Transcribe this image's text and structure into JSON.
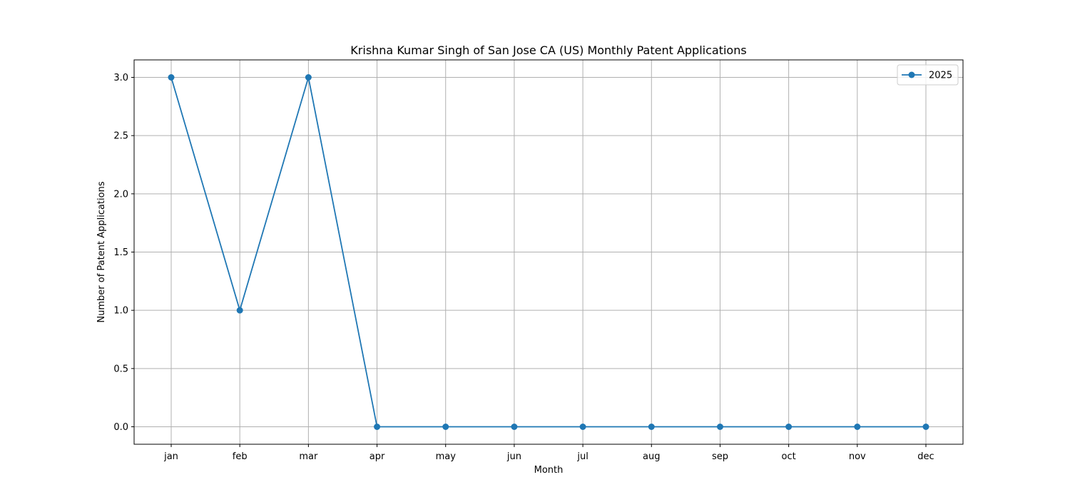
{
  "chart_data": {
    "type": "line",
    "title": "Krishna Kumar Singh of San Jose CA (US) Monthly Patent Applications",
    "xlabel": "Month",
    "ylabel": "Number of Patent Applications",
    "categories": [
      "jan",
      "feb",
      "mar",
      "apr",
      "may",
      "jun",
      "jul",
      "aug",
      "sep",
      "oct",
      "nov",
      "dec"
    ],
    "series": [
      {
        "name": "2025",
        "values": [
          3,
          1,
          3,
          0,
          0,
          0,
          0,
          0,
          0,
          0,
          0,
          0
        ],
        "color": "#1f77b4",
        "marker": "circle"
      }
    ],
    "ylim": [
      -0.15,
      3.15
    ],
    "yticks": [
      "0.0",
      "0.5",
      "1.0",
      "1.5",
      "2.0",
      "2.5",
      "3.0"
    ],
    "grid": true,
    "legend_position": "top-right"
  }
}
